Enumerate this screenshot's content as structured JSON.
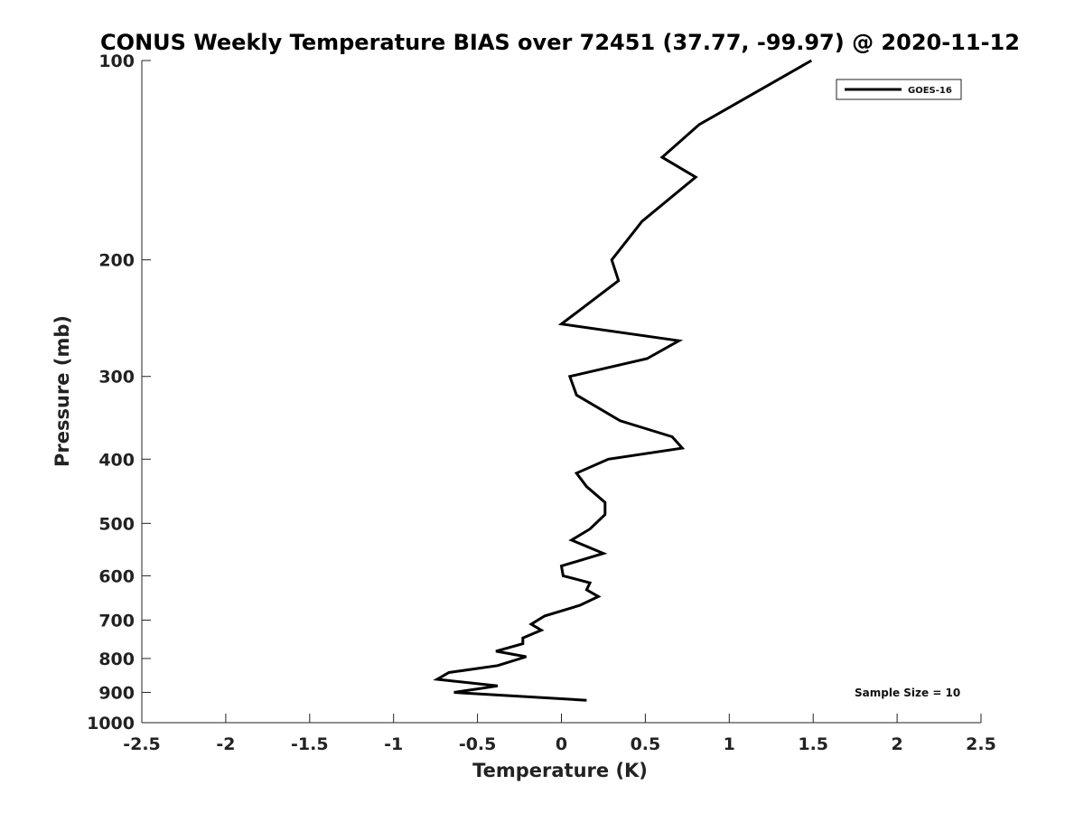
{
  "chart_data": {
    "type": "line",
    "title": "CONUS Weekly Temperature BIAS over 72451 (37.77, -99.97) @ 2020-11-12",
    "xlabel": "Temperature (K)",
    "ylabel": "Pressure (mb)",
    "xlim": [
      -2.5,
      2.5
    ],
    "ylim": [
      100,
      1000
    ],
    "y_scale": "log",
    "y_reversed": true,
    "x_ticks": [
      -2.5,
      -2,
      -1.5,
      -1,
      -0.5,
      0,
      0.5,
      1,
      1.5,
      2,
      2.5
    ],
    "x_tick_labels": [
      "-2.5",
      "-2",
      "-1.5",
      "-1",
      "-0.5",
      "0",
      "0.5",
      "1",
      "1.5",
      "2",
      "2.5"
    ],
    "y_ticks": [
      100,
      200,
      300,
      400,
      500,
      600,
      700,
      800,
      900,
      1000
    ],
    "y_tick_labels": [
      "100",
      "200",
      "300",
      "400",
      "500",
      "600",
      "700",
      "800",
      "900",
      "1000"
    ],
    "grid": false,
    "legend_position": "top-right",
    "series": [
      {
        "name": "GOES-16",
        "color": "#000000",
        "points": [
          [
            1.49,
            100
          ],
          [
            0.82,
            125
          ],
          [
            0.6,
            140
          ],
          [
            0.8,
            150
          ],
          [
            0.48,
            175
          ],
          [
            0.3,
            200
          ],
          [
            0.34,
            215
          ],
          [
            0.0,
            250
          ],
          [
            0.7,
            265
          ],
          [
            0.51,
            282
          ],
          [
            0.05,
            300
          ],
          [
            0.09,
            320
          ],
          [
            0.35,
            350
          ],
          [
            0.66,
            370
          ],
          [
            0.72,
            385
          ],
          [
            0.28,
            400
          ],
          [
            0.09,
            420
          ],
          [
            0.15,
            440
          ],
          [
            0.26,
            465
          ],
          [
            0.26,
            485
          ],
          [
            0.17,
            510
          ],
          [
            0.06,
            530
          ],
          [
            0.25,
            555
          ],
          [
            0.0,
            580
          ],
          [
            0.01,
            600
          ],
          [
            0.17,
            615
          ],
          [
            0.15,
            630
          ],
          [
            0.22,
            645
          ],
          [
            0.11,
            665
          ],
          [
            -0.1,
            690
          ],
          [
            -0.18,
            710
          ],
          [
            -0.12,
            725
          ],
          [
            -0.23,
            745
          ],
          [
            -0.23,
            760
          ],
          [
            -0.39,
            780
          ],
          [
            -0.21,
            795
          ],
          [
            -0.38,
            820
          ],
          [
            -0.67,
            840
          ],
          [
            -0.74,
            860
          ],
          [
            -0.38,
            880
          ],
          [
            -0.64,
            900
          ],
          [
            0.15,
            925
          ]
        ]
      }
    ],
    "annotation": "Sample Size = 10"
  }
}
